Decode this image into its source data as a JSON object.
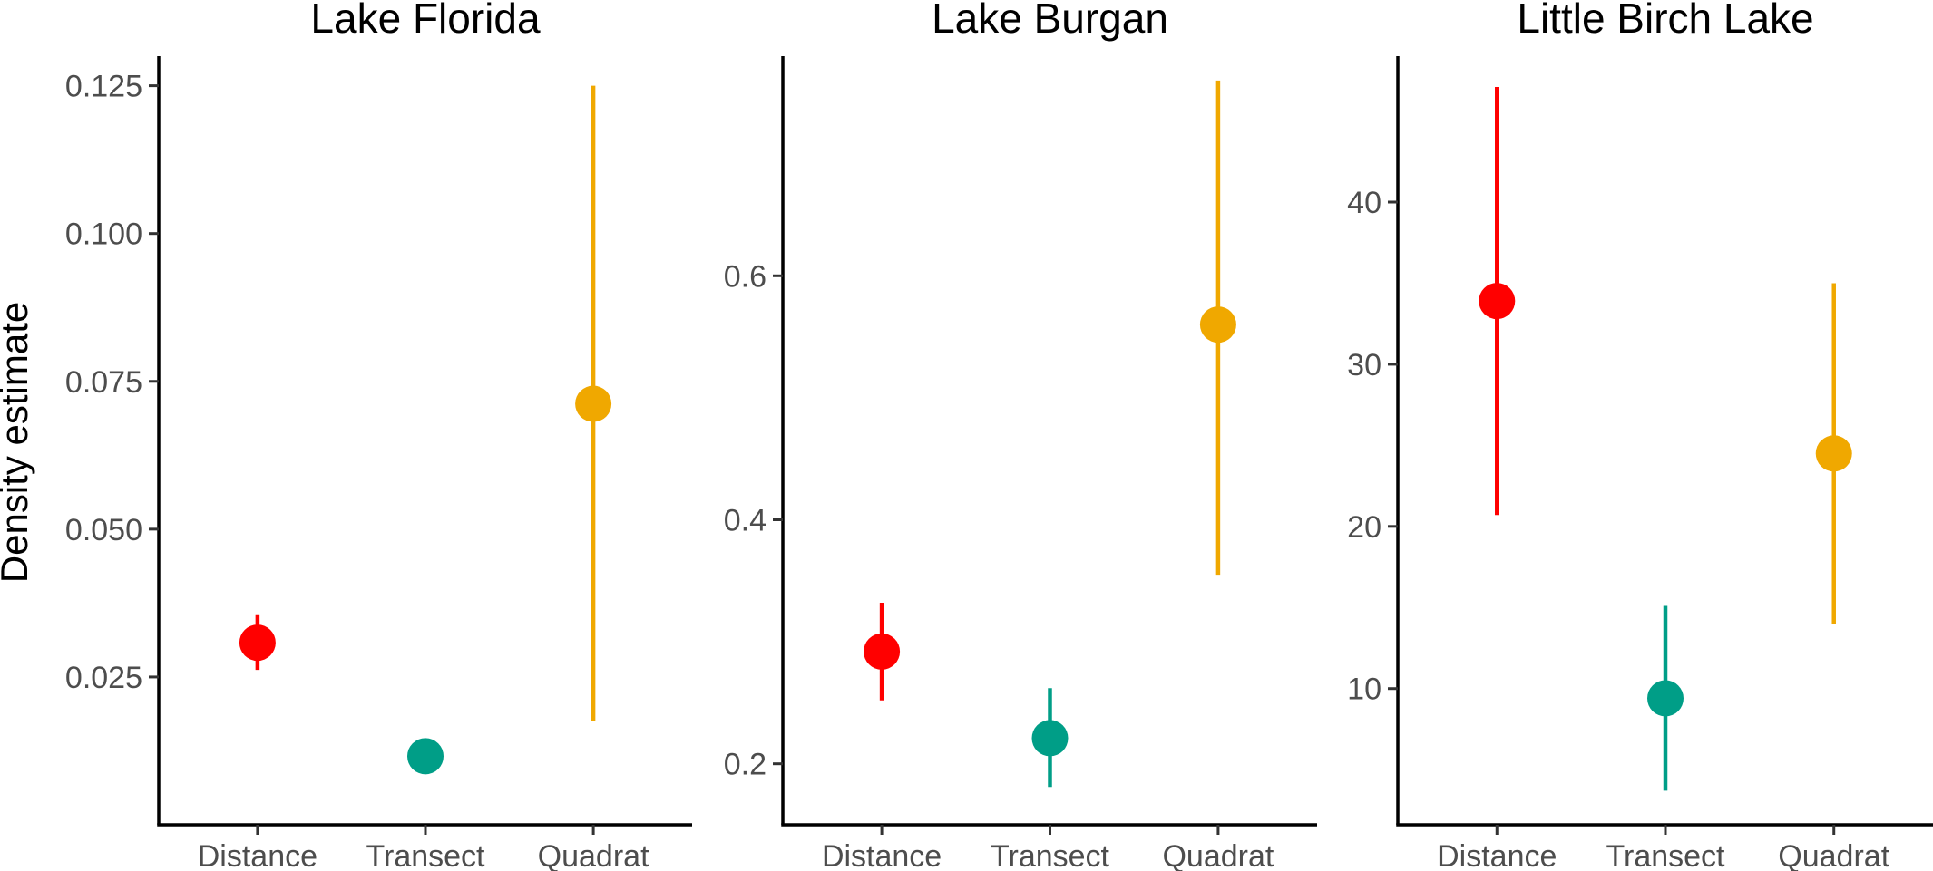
{
  "chart_data": {
    "type": "scatter",
    "ylabel": "Density estimate",
    "categories": [
      "Distance",
      "Transect",
      "Quadrat"
    ],
    "category_colors": [
      "#ff0000",
      "#009e87",
      "#f0a800"
    ],
    "panels": [
      {
        "title": "Lake Florida",
        "ylim": [
          0.0,
          0.13
        ],
        "yticks": [
          0.025,
          0.05,
          0.075,
          0.1,
          0.125
        ],
        "ytick_labels": [
          "0.025",
          "0.050",
          "0.075",
          "0.100",
          "0.125"
        ],
        "points": [
          {
            "category": "Distance",
            "y": 0.0308,
            "lower": 0.0262,
            "upper": 0.0356
          },
          {
            "category": "Transect",
            "y": 0.0116,
            "lower": 0.0116,
            "upper": 0.0116
          },
          {
            "category": "Quadrat",
            "y": 0.0712,
            "lower": 0.0175,
            "upper": 0.125
          }
        ]
      },
      {
        "title": "Lake Burgan",
        "ylim": [
          0.15,
          0.78
        ],
        "yticks": [
          0.2,
          0.4,
          0.6
        ],
        "ytick_labels": [
          "0.2",
          "0.4",
          "0.6"
        ],
        "points": [
          {
            "category": "Distance",
            "y": 0.292,
            "lower": 0.252,
            "upper": 0.332
          },
          {
            "category": "Transect",
            "y": 0.221,
            "lower": 0.181,
            "upper": 0.262
          },
          {
            "category": "Quadrat",
            "y": 0.56,
            "lower": 0.355,
            "upper": 0.76
          }
        ]
      },
      {
        "title": "Little Birch Lake",
        "ylim": [
          1.6,
          49.0
        ],
        "yticks": [
          10,
          20,
          30,
          40
        ],
        "ytick_labels": [
          "10",
          "20",
          "30",
          "40"
        ],
        "points": [
          {
            "category": "Distance",
            "y": 33.9,
            "lower": 20.7,
            "upper": 47.1
          },
          {
            "category": "Transect",
            "y": 9.4,
            "lower": 3.7,
            "upper": 15.1
          },
          {
            "category": "Quadrat",
            "y": 24.5,
            "lower": 14.0,
            "upper": 35.0
          }
        ]
      }
    ]
  }
}
